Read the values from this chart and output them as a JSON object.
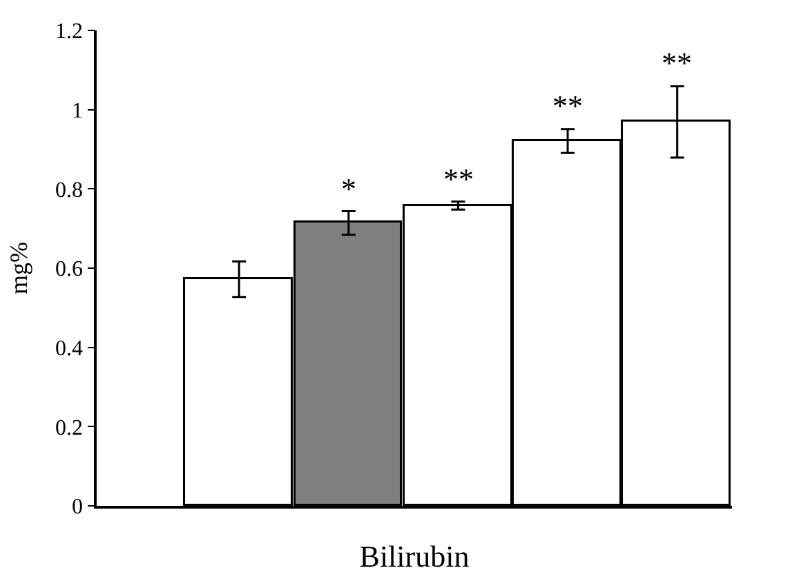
{
  "chart_data": {
    "type": "bar",
    "xlabel": "Bilirubin",
    "ylabel": "mg%",
    "categories": [
      null,
      null,
      null,
      null,
      null
    ],
    "values": [
      0.572,
      0.714,
      0.758,
      0.921,
      0.969
    ],
    "errors": [
      0.045,
      0.03,
      0.01,
      0.03,
      0.09
    ],
    "value_labels": [
      null,
      "*",
      "**",
      "**",
      "**"
    ],
    "colors": [
      "#ffffff",
      "#7f7f7f",
      "#ffffff",
      "#ffffff",
      "#ffffff"
    ],
    "ylim": [
      0,
      1.2
    ],
    "yticks": [
      0,
      0.2,
      0.4,
      0.6,
      0.8,
      1,
      1.2
    ]
  }
}
